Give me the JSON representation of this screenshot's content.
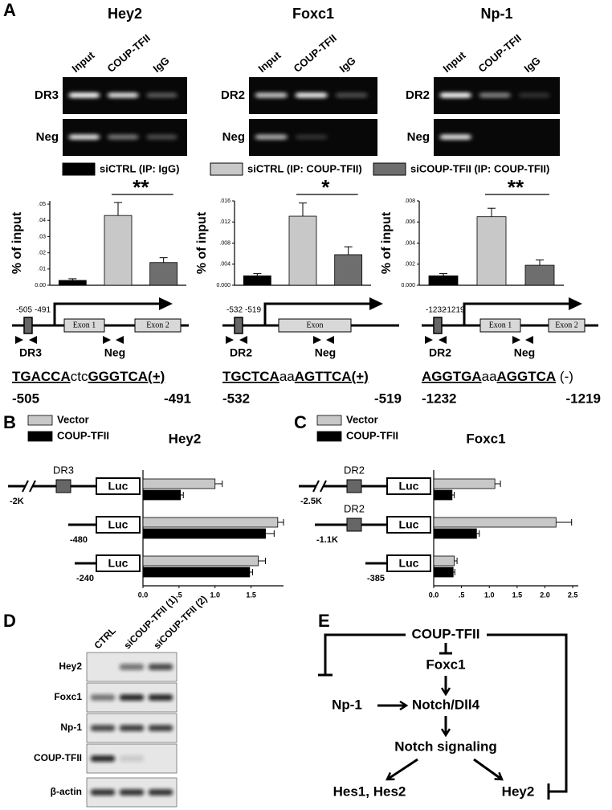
{
  "panel_labels": [
    "A",
    "B",
    "C",
    "D",
    "E"
  ],
  "gels": [
    {
      "title": "Hey2",
      "lanes": [
        "Input",
        "COUP-TFII",
        "IgG"
      ],
      "rows": [
        "DR3",
        "Neg"
      ]
    },
    {
      "title": "Foxc1",
      "lanes": [
        "Input",
        "COUP-TFII",
        "IgG"
      ],
      "rows": [
        "DR2",
        "Neg"
      ]
    },
    {
      "title": "Np-1",
      "lanes": [
        "Input",
        "COUP-TFII",
        "IgG"
      ],
      "rows": [
        "DR2",
        "Neg"
      ]
    }
  ],
  "legend": [
    {
      "label": "siCTRL (IP: IgG)",
      "color": "#000000"
    },
    {
      "label": "siCTRL (IP: COUP-TFII)",
      "color": "#c8c8c8"
    },
    {
      "label": "siCOUP-TFII (IP: COUP-TFII)",
      "color": "#6e6e6e"
    }
  ],
  "maps": [
    {
      "site_start": "-505",
      "site_end": "-491",
      "exons": [
        "Exon 1",
        "Exon 2"
      ],
      "site_primer": "DR3",
      "neg_primer": "Neg",
      "sequence": [
        {
          "text": "TGACCA",
          "underline": true
        },
        {
          "text": "ctc",
          "underline": false
        },
        {
          "text": "GGGTCA(+)",
          "underline": true
        }
      ],
      "seq_start": "-505",
      "seq_end": "-491"
    },
    {
      "site_start": "-532",
      "site_end": "-519",
      "exons": [
        "Exon"
      ],
      "site_primer": "DR2",
      "neg_primer": "Neg",
      "sequence": [
        {
          "text": "TGCTCA",
          "underline": true
        },
        {
          "text": "aa",
          "underline": false
        },
        {
          "text": "AGTTCA(+)",
          "underline": true
        }
      ],
      "seq_start": "-532",
      "seq_end": "-519"
    },
    {
      "site_start": "-1232",
      "site_end": "-1219",
      "exons": [
        "Exon 1",
        "Exon 2"
      ],
      "site_primer": "DR2",
      "neg_primer": "Neg",
      "sequence": [
        {
          "text": "AGGTGA",
          "underline": true
        },
        {
          "text": "aa",
          "underline": false
        },
        {
          "text": "AGGTCA",
          "underline": true
        },
        {
          "text": " (-)",
          "underline": false
        }
      ],
      "seq_start": "-1232",
      "seq_end": "-1219"
    }
  ],
  "chart_data": [
    {
      "type": "bar",
      "ylabel": "% of input",
      "categories": [
        null,
        null,
        null
      ],
      "values": [
        0.003,
        0.043,
        0.014
      ],
      "errors": [
        0.001,
        0.008,
        0.003
      ],
      "colors": [
        "#000000",
        "#c8c8c8",
        "#6e6e6e"
      ],
      "annotation": "**",
      "ylim": [
        0,
        0.052
      ],
      "yticks": [
        {
          "value": 0,
          "label": "0.00"
        },
        {
          "value": 0.01,
          "label": ".01"
        },
        {
          "value": 0.02,
          "label": ".02"
        },
        {
          "value": 0.03,
          "label": ".03"
        },
        {
          "value": 0.04,
          "label": ".04"
        },
        {
          "value": 0.05,
          "label": ".05"
        }
      ]
    },
    {
      "type": "bar",
      "ylabel": "% of input",
      "categories": [
        null,
        null,
        null
      ],
      "values": [
        0.0018,
        0.0131,
        0.0058
      ],
      "errors": [
        0.0004,
        0.0025,
        0.0015
      ],
      "colors": [
        "#000000",
        "#c8c8c8",
        "#6e6e6e"
      ],
      "annotation": "*",
      "ylim": [
        0,
        0.016
      ],
      "yticks": [
        {
          "value": 0,
          "label": "0.000"
        },
        {
          "value": 0.004,
          "label": ".004"
        },
        {
          "value": 0.008,
          "label": ".008"
        },
        {
          "value": 0.012,
          "label": ".012"
        },
        {
          "value": 0.016,
          "label": ".016"
        }
      ]
    },
    {
      "type": "bar",
      "ylabel": "% of input",
      "categories": [
        null,
        null,
        null
      ],
      "values": [
        0.0009,
        0.0065,
        0.0019
      ],
      "errors": [
        0.0002,
        0.0008,
        0.0005
      ],
      "colors": [
        "#000000",
        "#c8c8c8",
        "#6e6e6e"
      ],
      "annotation": "**",
      "ylim": [
        0,
        0.008
      ],
      "yticks": [
        {
          "value": 0,
          "label": "0.000"
        },
        {
          "value": 0.002,
          "label": ".002"
        },
        {
          "value": 0.004,
          "label": ".004"
        },
        {
          "value": 0.006,
          "label": ".006"
        },
        {
          "value": 0.008,
          "label": ".008"
        }
      ]
    },
    {
      "type": "barh",
      "title": "Hey2",
      "categories": [
        "-2K",
        "-480",
        "-240"
      ],
      "sites": [
        "DR3",
        null,
        null
      ],
      "box_label": "Luc",
      "series": [
        {
          "name": "Vector",
          "color": "#c8c8c8",
          "values": [
            1.0,
            1.87,
            1.6
          ],
          "errors": [
            0.1,
            0.08,
            0.1
          ]
        },
        {
          "name": "COUP-TFII",
          "color": "#000000",
          "values": [
            0.52,
            1.7,
            1.48
          ],
          "errors": [
            0.04,
            0.12,
            0.04
          ]
        }
      ],
      "xlim": [
        0,
        1.95
      ],
      "xticks": [
        {
          "value": 0,
          "label": "0.0"
        },
        {
          "value": 0.5,
          "label": ".5"
        },
        {
          "value": 1,
          "label": "1.0"
        },
        1.5
      ]
    },
    {
      "type": "barh",
      "title": "Foxc1",
      "categories": [
        "-2.5K",
        "-1.1K",
        "-385"
      ],
      "sites": [
        "DR2",
        "DR2",
        null
      ],
      "box_label": "Luc",
      "series": [
        {
          "name": "Vector",
          "color": "#c8c8c8",
          "values": [
            1.1,
            2.2,
            0.37
          ],
          "errors": [
            0.1,
            0.28,
            0.05
          ]
        },
        {
          "name": "COUP-TFII",
          "color": "#000000",
          "values": [
            0.33,
            0.77,
            0.35
          ],
          "errors": [
            0.04,
            0.05,
            0.03
          ]
        }
      ],
      "xlim": [
        0,
        2.6
      ],
      "xticks": [
        {
          "value": 0,
          "label": "0.0"
        },
        {
          "value": 0.5,
          "label": ".5"
        },
        {
          "value": 1,
          "label": "1.0"
        },
        1.5,
        {
          "value": 2,
          "label": "2.0"
        },
        2.5
      ]
    }
  ],
  "blot": {
    "lanes": [
      "CTRL",
      "siCOUP-TFII (1)",
      "siCOUP-TFII (2)"
    ],
    "rows": [
      "Hey2",
      "Foxc1",
      "Np-1",
      "COUP-TFII",
      "β-actin"
    ]
  },
  "pathway": {
    "nodes": [
      "COUP-TFII",
      "Foxc1",
      "Np-1",
      "Notch/Dll4",
      "Notch signaling",
      "Hes1, Hes2",
      "Hey2"
    ]
  }
}
